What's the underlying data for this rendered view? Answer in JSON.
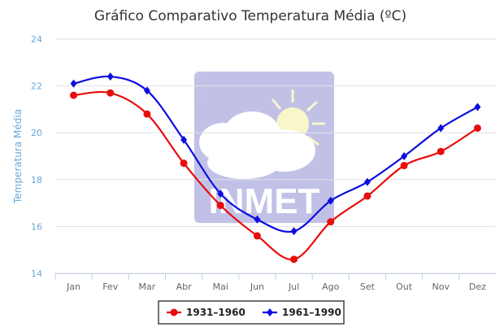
{
  "chart_data": {
    "type": "line",
    "title": "Gráfico Comparativo Temperatura Média (ºC)",
    "xlabel": "",
    "ylabel": "Temperatura Média",
    "ylim": [
      14,
      24
    ],
    "yticks": [
      14,
      16,
      18,
      20,
      22,
      24
    ],
    "grid": true,
    "legend": "bottom-center",
    "categories": [
      "Jan",
      "Fev",
      "Mar",
      "Abr",
      "Mai",
      "Jun",
      "Jul",
      "Ago",
      "Set",
      "Out",
      "Nov",
      "Dez"
    ],
    "series": [
      {
        "name": "1931–1960",
        "color": "#e80d0d",
        "marker": "circle",
        "values": [
          21.6,
          21.7,
          20.8,
          18.7,
          16.9,
          15.6,
          14.6,
          16.2,
          17.3,
          18.6,
          19.2,
          20.2
        ]
      },
      {
        "name": "1961–1990",
        "color": "#0d0de0",
        "marker": "diamond",
        "values": [
          22.1,
          22.4,
          21.8,
          19.7,
          17.4,
          16.3,
          15.8,
          17.1,
          17.9,
          19.0,
          20.2,
          21.1
        ]
      }
    ],
    "watermark": "INMET"
  }
}
